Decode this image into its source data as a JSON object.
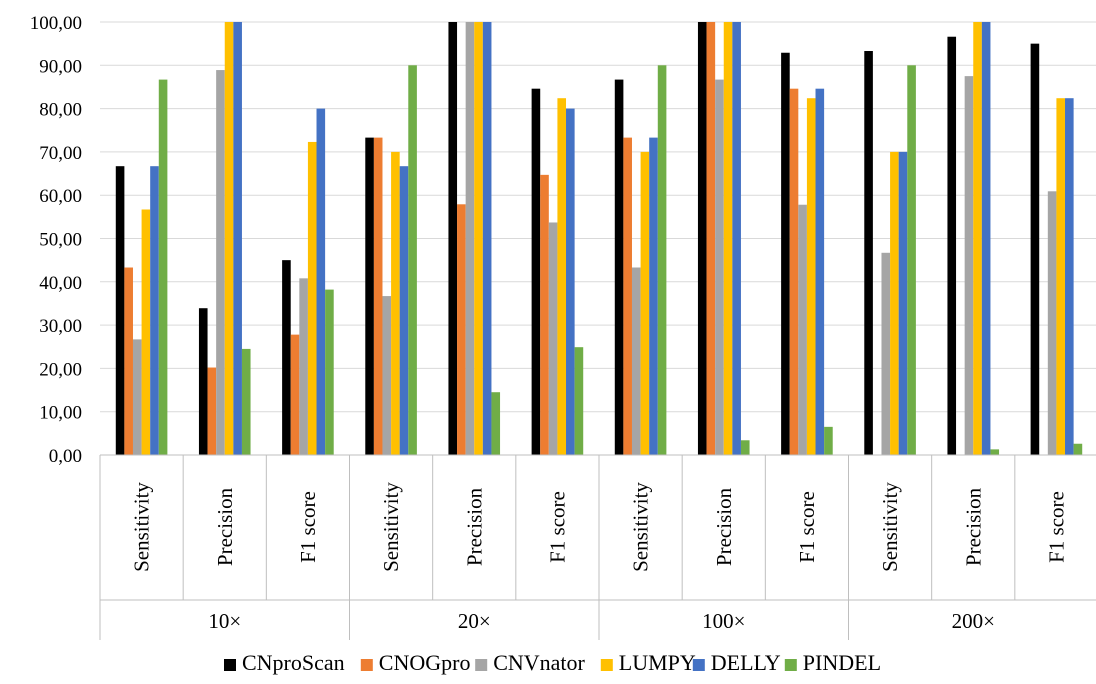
{
  "chart_data": {
    "type": "bar",
    "groups": [
      {
        "label": "10×",
        "categories": [
          "Sensitivity",
          "Precision",
          "F1 score"
        ]
      },
      {
        "label": "20×",
        "categories": [
          "Sensitivity",
          "Precision",
          "F1 score"
        ]
      },
      {
        "label": "100×",
        "categories": [
          "Sensitivity",
          "Precision",
          "F1 score"
        ]
      },
      {
        "label": "200×",
        "categories": [
          "Sensitivity",
          "Precision",
          "F1 score"
        ]
      }
    ],
    "ylim": [
      0,
      100
    ],
    "yticks": [
      "0,00",
      "10,00",
      "20,00",
      "30,00",
      "40,00",
      "50,00",
      "60,00",
      "70,00",
      "80,00",
      "90,00",
      "100,00"
    ],
    "grid": true,
    "legend_position": "bottom",
    "series": [
      {
        "name": "CNproScan",
        "color": "#000000",
        "values": [
          66.7,
          33.9,
          45.0,
          73.3,
          100,
          84.6,
          86.7,
          100,
          92.9,
          93.3,
          96.6,
          95.0
        ]
      },
      {
        "name": "CNOGpro",
        "color": "#ED7D31",
        "values": [
          43.3,
          20.2,
          27.8,
          73.3,
          57.9,
          64.7,
          73.3,
          100,
          84.6,
          0,
          0,
          0
        ]
      },
      {
        "name": "CNVnator",
        "color": "#A5A5A5",
        "values": [
          26.7,
          88.9,
          40.8,
          36.7,
          100,
          53.7,
          43.3,
          86.7,
          57.8,
          46.7,
          87.5,
          60.9
        ]
      },
      {
        "name": "LUMPY",
        "color": "#FFC000",
        "values": [
          56.7,
          100,
          72.3,
          70.0,
          100,
          82.4,
          70.0,
          100,
          82.4,
          70.0,
          100,
          82.4
        ]
      },
      {
        "name": "DELLY",
        "color": "#4472C4",
        "values": [
          66.7,
          100,
          80.0,
          66.7,
          100,
          80.0,
          73.3,
          100,
          84.6,
          70.0,
          100,
          82.4
        ]
      },
      {
        "name": "PINDEL",
        "color": "#70AD47",
        "values": [
          86.7,
          24.5,
          38.2,
          90.0,
          14.5,
          24.9,
          90.0,
          3.4,
          6.5,
          90.0,
          1.3,
          2.6
        ]
      }
    ]
  }
}
